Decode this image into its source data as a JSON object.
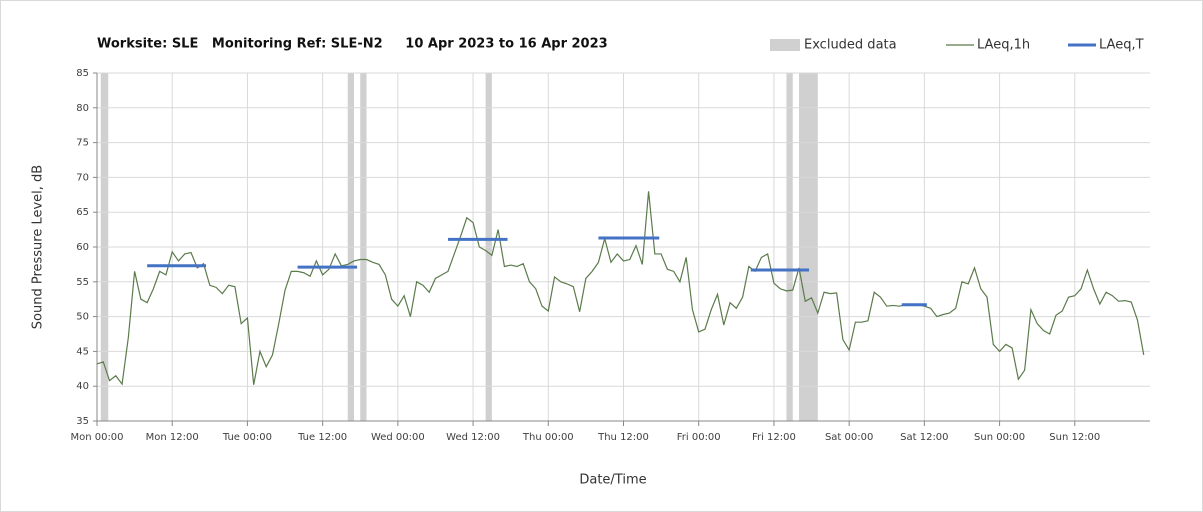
{
  "chart_data": {
    "type": "line",
    "title": "Worksite: SLE   Monitoring Ref: SLE-N2     10 Apr 2023 to 16 Apr 2023",
    "xlabel": "Date/Time",
    "ylabel": "Sound Pressure Level, dB",
    "xlim": [
      0,
      168
    ],
    "xticks": [
      {
        "value": 0,
        "label": "Mon 00:00"
      },
      {
        "value": 12,
        "label": "Mon 12:00"
      },
      {
        "value": 24,
        "label": "Tue 00:00"
      },
      {
        "value": 36,
        "label": "Tue 12:00"
      },
      {
        "value": 48,
        "label": "Wed 00:00"
      },
      {
        "value": 60,
        "label": "Wed 12:00"
      },
      {
        "value": 72,
        "label": "Thu 00:00"
      },
      {
        "value": 84,
        "label": "Thu 12:00"
      },
      {
        "value": 96,
        "label": "Fri 00:00"
      },
      {
        "value": 108,
        "label": "Fri 12:00"
      },
      {
        "value": 120,
        "label": "Sat 00:00"
      },
      {
        "value": 132,
        "label": "Sat 12:00"
      },
      {
        "value": 144,
        "label": "Sun 00:00"
      },
      {
        "value": 156,
        "label": "Sun 12:00"
      }
    ],
    "ylim": [
      35,
      85
    ],
    "yticks": [
      35,
      40,
      45,
      50,
      55,
      60,
      65,
      70,
      75,
      80,
      85
    ],
    "grid": true,
    "excluded": {
      "name": "Excluded data",
      "color": "#d0d0d0",
      "ranges": [
        [
          0.6,
          1.8
        ],
        [
          40,
          41
        ],
        [
          42,
          43
        ],
        [
          62,
          63
        ],
        [
          110,
          111
        ],
        [
          112,
          115
        ]
      ]
    },
    "series": [
      {
        "name": "LAeq,1h",
        "color": "#5b7b4b",
        "values": [
          43.2,
          43.5,
          40.8,
          41.5,
          40.3,
          47,
          56.5,
          52.5,
          52,
          54,
          56.5,
          56,
          59.3,
          58,
          59,
          59.2,
          57,
          57.6,
          54.5,
          54.2,
          53.3,
          54.5,
          54.3,
          49,
          49.8,
          40.2,
          45,
          42.8,
          44.5,
          49,
          53.8,
          56.5,
          56.5,
          56.3,
          55.8,
          58,
          56,
          56.8,
          59,
          57.3,
          57.5,
          58,
          58.2,
          58.2,
          57.8,
          57.5,
          56,
          52.5,
          51.5,
          53,
          50,
          55,
          54.5,
          53.5,
          55.5,
          56,
          56.5,
          59,
          61.5,
          64.2,
          63.5,
          60,
          59.5,
          58.8,
          62.5,
          57.2,
          57.4,
          57.2,
          57.6,
          55,
          54,
          51.5,
          50.8,
          55.7,
          55,
          54.7,
          54.3,
          50.7,
          55.5,
          56.5,
          57.8,
          61.2,
          57.8,
          59,
          58,
          58.2,
          60.2,
          57.5,
          68,
          59,
          59,
          56.8,
          56.5,
          55,
          58.5,
          51,
          47.8,
          48.2,
          51,
          53.2,
          48.8,
          52,
          51.2,
          52.8,
          57.2,
          56.5,
          58.5,
          59,
          54.8,
          54,
          53.7,
          53.8,
          57,
          52.2,
          52.7,
          50.5,
          53.5,
          53.3,
          53.4,
          46.7,
          45.2,
          49.2,
          49.2,
          49.4,
          53.5,
          52.8,
          51.5,
          51.6,
          51.5,
          51.7,
          51.6,
          51.7,
          51.5,
          51.2,
          50,
          50.3,
          50.5,
          51.2,
          55,
          54.7,
          57,
          54,
          52.8,
          46,
          45,
          46,
          45.5,
          41,
          42.3,
          51,
          49,
          48,
          47.5,
          50.2,
          50.8,
          52.8,
          53,
          54,
          56.7,
          54,
          51.8,
          53.5,
          53,
          52.2,
          52.3,
          52.1,
          49.5,
          44.5
        ]
      },
      {
        "name": "LAeq,T",
        "color": "#4472c4",
        "segments": [
          {
            "start": 8,
            "end": 17.4,
            "value": 57.3
          },
          {
            "start": 32,
            "end": 41.5,
            "value": 57.1
          },
          {
            "start": 56,
            "end": 65.5,
            "value": 61.1
          },
          {
            "start": 80,
            "end": 89.7,
            "value": 61.3
          },
          {
            "start": 104.3,
            "end": 113.6,
            "value": 56.7
          },
          {
            "start": 128.4,
            "end": 132.4,
            "value": 51.7
          }
        ]
      }
    ]
  }
}
